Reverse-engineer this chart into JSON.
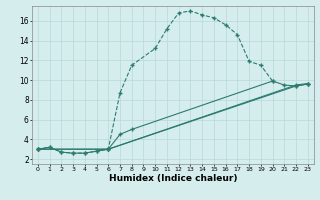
{
  "xlabel": "Humidex (Indice chaleur)",
  "xlim": [
    -0.5,
    23.5
  ],
  "ylim": [
    1.5,
    17.5
  ],
  "xticks": [
    0,
    1,
    2,
    3,
    4,
    5,
    6,
    7,
    8,
    9,
    10,
    11,
    12,
    13,
    14,
    15,
    16,
    17,
    18,
    19,
    20,
    21,
    22,
    23
  ],
  "yticks": [
    2,
    4,
    6,
    8,
    10,
    12,
    14,
    16
  ],
  "background_color": "#d6eded",
  "grid_color": "#b8d8d8",
  "line_color": "#2b7b6f",
  "curve_main_x": [
    0,
    1,
    2,
    3,
    4,
    5,
    6,
    7,
    8,
    10,
    11,
    12,
    13,
    14,
    15,
    16,
    17,
    18,
    19,
    20
  ],
  "curve_main_y": [
    3.0,
    3.2,
    2.7,
    2.6,
    2.6,
    2.8,
    3.0,
    8.7,
    11.5,
    13.2,
    15.2,
    16.8,
    17.0,
    16.6,
    16.3,
    15.6,
    14.6,
    11.9,
    11.5,
    9.9
  ],
  "curve2_x": [
    0,
    1,
    2,
    3,
    4,
    5,
    6,
    7,
    8,
    20,
    21,
    22,
    23
  ],
  "curve2_y": [
    3.0,
    3.2,
    2.7,
    2.6,
    2.6,
    2.8,
    3.0,
    4.5,
    5.0,
    9.9,
    9.5,
    9.4,
    9.6
  ],
  "curve3_x": [
    0,
    6,
    22,
    23
  ],
  "curve3_y": [
    3.0,
    3.0,
    9.4,
    9.6
  ],
  "curve4_x": [
    0,
    6,
    22,
    23
  ],
  "curve4_y": [
    3.0,
    3.0,
    9.5,
    9.65
  ]
}
